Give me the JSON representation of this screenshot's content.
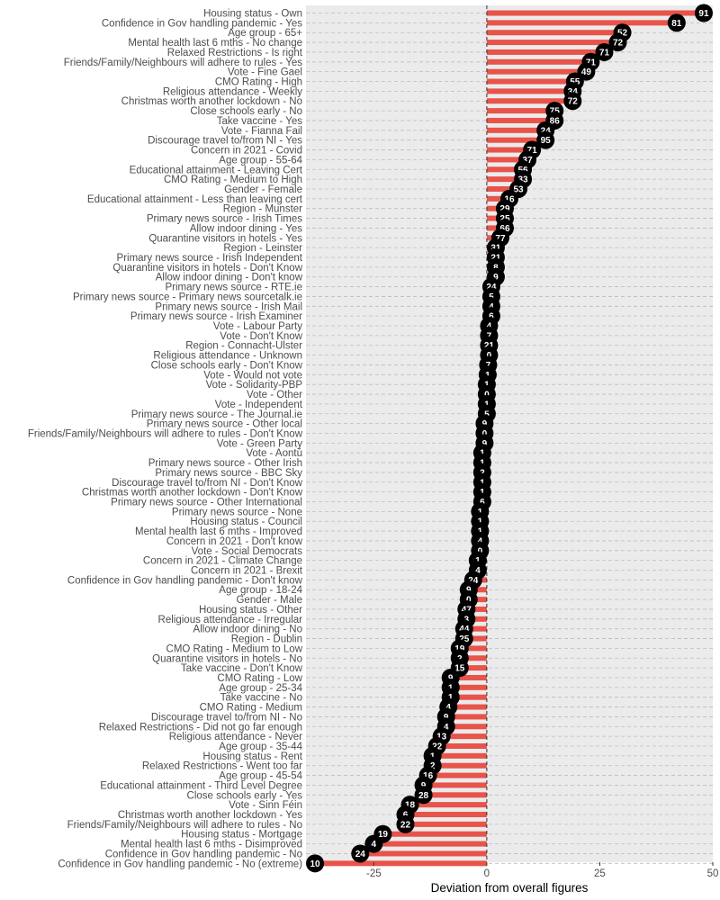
{
  "chart_data": {
    "type": "lollipop",
    "title": "",
    "xlabel": "Deviation from overall figures",
    "ylabel": "",
    "xlim": [
      -40,
      50
    ],
    "xticks": [
      -25,
      0,
      25,
      50
    ],
    "xtick_labels": [
      "-25",
      "0",
      "25",
      "50"
    ],
    "colors": {
      "panel": "#ebebeb",
      "bar": "#e8534a",
      "dot": "#000000",
      "dot_text": "#ffffff",
      "gridline": "#bdbdbd",
      "zero_line": "#333333"
    },
    "items": [
      {
        "label": "Housing status - Own",
        "value": 48,
        "n": "91"
      },
      {
        "label": "Confidence in Gov handling pandemic - Yes",
        "value": 42,
        "n": "81"
      },
      {
        "label": "Age group - 65+",
        "value": 30,
        "n": "52"
      },
      {
        "label": "Mental health last 6 mths - No change",
        "value": 29,
        "n": "72"
      },
      {
        "label": "Relaxed Restrictions - Is right",
        "value": 26,
        "n": "71"
      },
      {
        "label": "Friends/Family/Neighbours will adhere to rules - Yes",
        "value": 23,
        "n": "71"
      },
      {
        "label": "Vote - Fine Gael",
        "value": 22,
        "n": "49"
      },
      {
        "label": "CMO Rating - High",
        "value": 19.5,
        "n": "55"
      },
      {
        "label": "Religious attendance - Weekly",
        "value": 19,
        "n": "34"
      },
      {
        "label": "Christmas worth another lockdown - No",
        "value": 19,
        "n": "72"
      },
      {
        "label": "Close schools early - No",
        "value": 15,
        "n": "75"
      },
      {
        "label": "Take vaccine - Yes",
        "value": 15,
        "n": "86"
      },
      {
        "label": "Vote - Fianna Fail",
        "value": 13,
        "n": "24"
      },
      {
        "label": "Discourage travel to/from NI - Yes",
        "value": 13,
        "n": "95"
      },
      {
        "label": "Concern in 2021 - Covid",
        "value": 10,
        "n": "71"
      },
      {
        "label": "Age group - 55-64",
        "value": 9,
        "n": "37"
      },
      {
        "label": "Educational attainment - Leaving Cert",
        "value": 8,
        "n": "56"
      },
      {
        "label": "CMO Rating - Medium to High",
        "value": 8,
        "n": "33"
      },
      {
        "label": "Gender - Female",
        "value": 7,
        "n": "53"
      },
      {
        "label": "Educational attainment - Less than leaving cert",
        "value": 5,
        "n": "16"
      },
      {
        "label": "Region - Munster",
        "value": 4,
        "n": "29"
      },
      {
        "label": "Primary news source - Irish Times",
        "value": 4,
        "n": "25"
      },
      {
        "label": "Allow indoor dining - Yes",
        "value": 4,
        "n": "66"
      },
      {
        "label": "Quarantine visitors in hotels - Yes",
        "value": 3,
        "n": "77"
      },
      {
        "label": "Region - Leinster",
        "value": 2,
        "n": "31"
      },
      {
        "label": "Primary news source - Irish Independent",
        "value": 2,
        "n": "21"
      },
      {
        "label": "Quarantine visitors in hotels - Don't Know",
        "value": 2,
        "n": "8"
      },
      {
        "label": "Allow indoor dining - Don't know",
        "value": 2,
        "n": "9"
      },
      {
        "label": "Primary news source - RTE.ie",
        "value": 1,
        "n": "24"
      },
      {
        "label": "Primary news source - Primary news sourcetalk.ie",
        "value": 1,
        "n": "5"
      },
      {
        "label": "Primary news source - Irish Mail",
        "value": 1,
        "n": "4"
      },
      {
        "label": "Primary news source - Irish Examiner",
        "value": 1,
        "n": "6"
      },
      {
        "label": "Vote - Labour Party",
        "value": 0.5,
        "n": "4"
      },
      {
        "label": "Vote - Don't Know",
        "value": 0.5,
        "n": "7"
      },
      {
        "label": "Region - Connacht-Ulster",
        "value": 0.5,
        "n": "21"
      },
      {
        "label": "Religious attendance - Unknown",
        "value": 0.5,
        "n": "0"
      },
      {
        "label": "Close schools early - Don't Know",
        "value": 0.3,
        "n": "7"
      },
      {
        "label": "Vote - Would not vote",
        "value": 0.2,
        "n": "1"
      },
      {
        "label": "Vote - Solidarity-PBP",
        "value": 0,
        "n": "1"
      },
      {
        "label": "Vote - Other",
        "value": 0,
        "n": "0"
      },
      {
        "label": "Vote - Independent",
        "value": 0,
        "n": "1"
      },
      {
        "label": "Primary news source - The Journal.ie",
        "value": 0,
        "n": "5"
      },
      {
        "label": "Primary news source - Other local",
        "value": -0.5,
        "n": "9"
      },
      {
        "label": "Friends/Family/Neighbours will adhere to rules - Don't Know",
        "value": -0.5,
        "n": "0"
      },
      {
        "label": "Vote - Green Party",
        "value": -0.5,
        "n": "9"
      },
      {
        "label": "Vote - Aontú",
        "value": -1,
        "n": "1"
      },
      {
        "label": "Primary news source - Other Irish",
        "value": -1,
        "n": "1"
      },
      {
        "label": "Primary news source - BBC Sky",
        "value": -1,
        "n": "2"
      },
      {
        "label": "Discourage travel to/from NI - Don't Know",
        "value": -1,
        "n": "1"
      },
      {
        "label": "Christmas worth another lockdown - Don't Know",
        "value": -1,
        "n": "1"
      },
      {
        "label": "Primary news source - Other International",
        "value": -1,
        "n": "6"
      },
      {
        "label": "Primary news source - None",
        "value": -1.5,
        "n": "1"
      },
      {
        "label": "Housing status - Council",
        "value": -1.5,
        "n": "1"
      },
      {
        "label": "Mental health last 6 mths - Improved",
        "value": -1.5,
        "n": "1"
      },
      {
        "label": "Concern in 2021 - Don't know",
        "value": -1.5,
        "n": "4"
      },
      {
        "label": "Vote - Social Democrats",
        "value": -1.5,
        "n": "0"
      },
      {
        "label": "Concern in 2021 - Climate Change",
        "value": -2,
        "n": "1"
      },
      {
        "label": "Concern in 2021 - Brexit",
        "value": -2,
        "n": "4"
      },
      {
        "label": "Confidence in Gov handling pandemic - Don't know",
        "value": -3,
        "n": "24"
      },
      {
        "label": "Age group - 18-24",
        "value": -4,
        "n": "9"
      },
      {
        "label": "Gender - Male",
        "value": -4,
        "n": "0"
      },
      {
        "label": "Housing status - Other",
        "value": -4.5,
        "n": "47"
      },
      {
        "label": "Religious attendance - Irregular",
        "value": -4.5,
        "n": "3"
      },
      {
        "label": "Allow indoor dining - No",
        "value": -5,
        "n": "44"
      },
      {
        "label": "Region - Dublin",
        "value": -5,
        "n": "25"
      },
      {
        "label": "CMO Rating - Medium to Low",
        "value": -6,
        "n": "19"
      },
      {
        "label": "Quarantine visitors in hotels - No",
        "value": -6,
        "n": "2"
      },
      {
        "label": "Take vaccine - Don't Know",
        "value": -6,
        "n": "15"
      },
      {
        "label": "CMO Rating - Low",
        "value": -8,
        "n": "9"
      },
      {
        "label": "Age group - 25-34",
        "value": -8,
        "n": "1"
      },
      {
        "label": "Take vaccine - No",
        "value": -8,
        "n": "1"
      },
      {
        "label": "CMO Rating - Medium",
        "value": -8.5,
        "n": "4"
      },
      {
        "label": "Discourage travel to/from NI - No",
        "value": -9,
        "n": "9"
      },
      {
        "label": "Relaxed Restrictions - Did not go far enough",
        "value": -9,
        "n": "4"
      },
      {
        "label": "Religious attendance - Never",
        "value": -10,
        "n": "13"
      },
      {
        "label": "Age group - 35-44",
        "value": -11,
        "n": "22"
      },
      {
        "label": "Housing status - Rent",
        "value": -12,
        "n": "1"
      },
      {
        "label": "Relaxed Restrictions - Went too far",
        "value": -12,
        "n": "2"
      },
      {
        "label": "Age group - 45-54",
        "value": -13,
        "n": "16"
      },
      {
        "label": "Educational attainment - Third Level Degree",
        "value": -14,
        "n": "9"
      },
      {
        "label": "Close schools early - Yes",
        "value": -14,
        "n": "28"
      },
      {
        "label": "Vote - Sinn Féin",
        "value": -17,
        "n": "18"
      },
      {
        "label": "Christmas worth another lockdown - Yes",
        "value": -18,
        "n": "6"
      },
      {
        "label": "Friends/Family/Neighbours will adhere to rules - No",
        "value": -18,
        "n": "22"
      },
      {
        "label": "Housing status - Mortgage",
        "value": -23,
        "n": "19"
      },
      {
        "label": "Mental health last 6 mths - Disimproved",
        "value": -25,
        "n": "4"
      },
      {
        "label": "Confidence in Gov handling pandemic - No",
        "value": -28,
        "n": "24"
      },
      {
        "label": "Confidence in Gov handling pandemic - No (extreme)",
        "value": -38,
        "n": "10"
      }
    ]
  }
}
